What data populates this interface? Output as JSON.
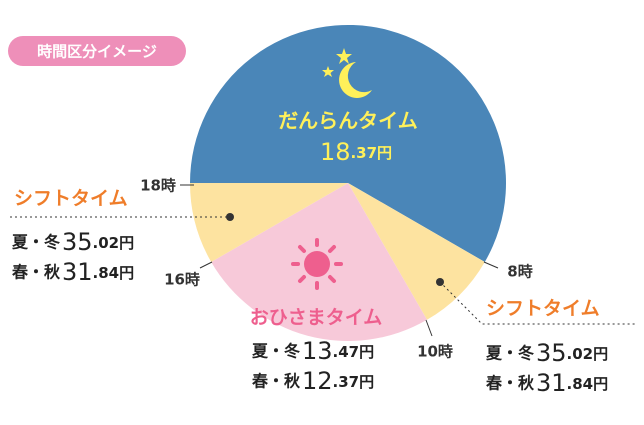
{
  "badge": "時間区分イメージ",
  "periods": {
    "danran": {
      "name": "だんらんタイム",
      "price": [
        "18",
        ".37円"
      ]
    },
    "ohisama": {
      "name": "おひさまタイム",
      "rows": [
        {
          "season": "夏・冬",
          "price": [
            "13",
            ".47円"
          ]
        },
        {
          "season": "春・秋",
          "price": [
            "12",
            ".37円"
          ]
        }
      ]
    },
    "shift_left": {
      "name": "シフトタイム",
      "rows": [
        {
          "season": "夏・冬",
          "price": [
            "35",
            ".02円"
          ]
        },
        {
          "season": "春・秋",
          "price": [
            "31",
            ".84円"
          ]
        }
      ]
    },
    "shift_right": {
      "name": "シフトタイム",
      "rows": [
        {
          "season": "夏・冬",
          "price": [
            "35",
            ".02円"
          ]
        },
        {
          "season": "春・秋",
          "price": [
            "31",
            ".84円"
          ]
        }
      ]
    }
  },
  "times": [
    "18時",
    "16時",
    "10時",
    "8時"
  ]
}
